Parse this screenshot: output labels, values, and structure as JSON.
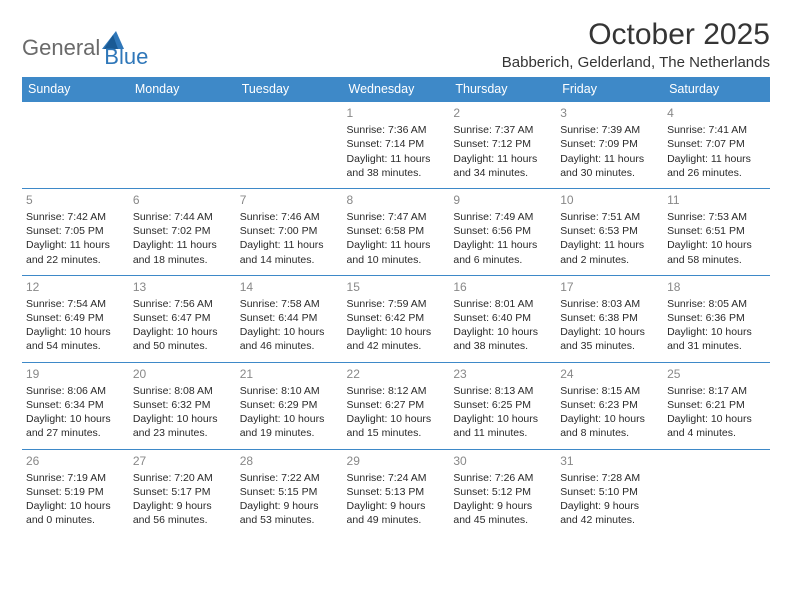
{
  "logo": {
    "part1": "General",
    "part2": "Blue"
  },
  "title": "October 2025",
  "location": "Babberich, Gelderland, The Netherlands",
  "colors": {
    "header_bg": "#3e89c8",
    "header_text": "#ffffff",
    "border": "#3e89c8",
    "daynum": "#888888",
    "body_text": "#2a2a2a",
    "logo_gray": "#6a6a6a",
    "logo_blue": "#2f77b9",
    "page_bg": "#ffffff"
  },
  "day_names": [
    "Sunday",
    "Monday",
    "Tuesday",
    "Wednesday",
    "Thursday",
    "Friday",
    "Saturday"
  ],
  "weeks": [
    [
      null,
      null,
      null,
      {
        "n": "1",
        "sr": "Sunrise: 7:36 AM",
        "ss": "Sunset: 7:14 PM",
        "dl": "Daylight: 11 hours and 38 minutes."
      },
      {
        "n": "2",
        "sr": "Sunrise: 7:37 AM",
        "ss": "Sunset: 7:12 PM",
        "dl": "Daylight: 11 hours and 34 minutes."
      },
      {
        "n": "3",
        "sr": "Sunrise: 7:39 AM",
        "ss": "Sunset: 7:09 PM",
        "dl": "Daylight: 11 hours and 30 minutes."
      },
      {
        "n": "4",
        "sr": "Sunrise: 7:41 AM",
        "ss": "Sunset: 7:07 PM",
        "dl": "Daylight: 11 hours and 26 minutes."
      }
    ],
    [
      {
        "n": "5",
        "sr": "Sunrise: 7:42 AM",
        "ss": "Sunset: 7:05 PM",
        "dl": "Daylight: 11 hours and 22 minutes."
      },
      {
        "n": "6",
        "sr": "Sunrise: 7:44 AM",
        "ss": "Sunset: 7:02 PM",
        "dl": "Daylight: 11 hours and 18 minutes."
      },
      {
        "n": "7",
        "sr": "Sunrise: 7:46 AM",
        "ss": "Sunset: 7:00 PM",
        "dl": "Daylight: 11 hours and 14 minutes."
      },
      {
        "n": "8",
        "sr": "Sunrise: 7:47 AM",
        "ss": "Sunset: 6:58 PM",
        "dl": "Daylight: 11 hours and 10 minutes."
      },
      {
        "n": "9",
        "sr": "Sunrise: 7:49 AM",
        "ss": "Sunset: 6:56 PM",
        "dl": "Daylight: 11 hours and 6 minutes."
      },
      {
        "n": "10",
        "sr": "Sunrise: 7:51 AM",
        "ss": "Sunset: 6:53 PM",
        "dl": "Daylight: 11 hours and 2 minutes."
      },
      {
        "n": "11",
        "sr": "Sunrise: 7:53 AM",
        "ss": "Sunset: 6:51 PM",
        "dl": "Daylight: 10 hours and 58 minutes."
      }
    ],
    [
      {
        "n": "12",
        "sr": "Sunrise: 7:54 AM",
        "ss": "Sunset: 6:49 PM",
        "dl": "Daylight: 10 hours and 54 minutes."
      },
      {
        "n": "13",
        "sr": "Sunrise: 7:56 AM",
        "ss": "Sunset: 6:47 PM",
        "dl": "Daylight: 10 hours and 50 minutes."
      },
      {
        "n": "14",
        "sr": "Sunrise: 7:58 AM",
        "ss": "Sunset: 6:44 PM",
        "dl": "Daylight: 10 hours and 46 minutes."
      },
      {
        "n": "15",
        "sr": "Sunrise: 7:59 AM",
        "ss": "Sunset: 6:42 PM",
        "dl": "Daylight: 10 hours and 42 minutes."
      },
      {
        "n": "16",
        "sr": "Sunrise: 8:01 AM",
        "ss": "Sunset: 6:40 PM",
        "dl": "Daylight: 10 hours and 38 minutes."
      },
      {
        "n": "17",
        "sr": "Sunrise: 8:03 AM",
        "ss": "Sunset: 6:38 PM",
        "dl": "Daylight: 10 hours and 35 minutes."
      },
      {
        "n": "18",
        "sr": "Sunrise: 8:05 AM",
        "ss": "Sunset: 6:36 PM",
        "dl": "Daylight: 10 hours and 31 minutes."
      }
    ],
    [
      {
        "n": "19",
        "sr": "Sunrise: 8:06 AM",
        "ss": "Sunset: 6:34 PM",
        "dl": "Daylight: 10 hours and 27 minutes."
      },
      {
        "n": "20",
        "sr": "Sunrise: 8:08 AM",
        "ss": "Sunset: 6:32 PM",
        "dl": "Daylight: 10 hours and 23 minutes."
      },
      {
        "n": "21",
        "sr": "Sunrise: 8:10 AM",
        "ss": "Sunset: 6:29 PM",
        "dl": "Daylight: 10 hours and 19 minutes."
      },
      {
        "n": "22",
        "sr": "Sunrise: 8:12 AM",
        "ss": "Sunset: 6:27 PM",
        "dl": "Daylight: 10 hours and 15 minutes."
      },
      {
        "n": "23",
        "sr": "Sunrise: 8:13 AM",
        "ss": "Sunset: 6:25 PM",
        "dl": "Daylight: 10 hours and 11 minutes."
      },
      {
        "n": "24",
        "sr": "Sunrise: 8:15 AM",
        "ss": "Sunset: 6:23 PM",
        "dl": "Daylight: 10 hours and 8 minutes."
      },
      {
        "n": "25",
        "sr": "Sunrise: 8:17 AM",
        "ss": "Sunset: 6:21 PM",
        "dl": "Daylight: 10 hours and 4 minutes."
      }
    ],
    [
      {
        "n": "26",
        "sr": "Sunrise: 7:19 AM",
        "ss": "Sunset: 5:19 PM",
        "dl": "Daylight: 10 hours and 0 minutes."
      },
      {
        "n": "27",
        "sr": "Sunrise: 7:20 AM",
        "ss": "Sunset: 5:17 PM",
        "dl": "Daylight: 9 hours and 56 minutes."
      },
      {
        "n": "28",
        "sr": "Sunrise: 7:22 AM",
        "ss": "Sunset: 5:15 PM",
        "dl": "Daylight: 9 hours and 53 minutes."
      },
      {
        "n": "29",
        "sr": "Sunrise: 7:24 AM",
        "ss": "Sunset: 5:13 PM",
        "dl": "Daylight: 9 hours and 49 minutes."
      },
      {
        "n": "30",
        "sr": "Sunrise: 7:26 AM",
        "ss": "Sunset: 5:12 PM",
        "dl": "Daylight: 9 hours and 45 minutes."
      },
      {
        "n": "31",
        "sr": "Sunrise: 7:28 AM",
        "ss": "Sunset: 5:10 PM",
        "dl": "Daylight: 9 hours and 42 minutes."
      },
      null
    ]
  ]
}
